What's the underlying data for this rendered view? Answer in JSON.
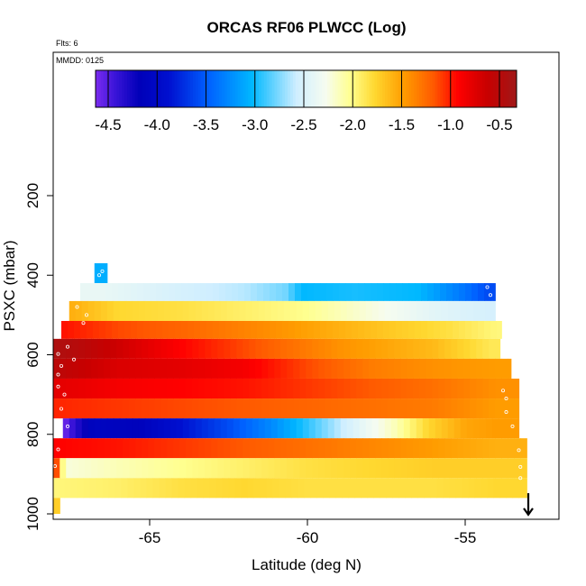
{
  "chart_data": {
    "type": "heatmap",
    "title": "ORCAS RF06 PLWCC (Log)",
    "note_flts": "Flts: 6",
    "note_mmdd": "MMDD: 0125",
    "xlabel": "Latitude (deg N)",
    "ylabel": "PSXC (mbar)",
    "xlim": [
      -68.3,
      -52.3
    ],
    "ylim_inverted": [
      1000,
      100
    ],
    "x_ticks": [
      -65,
      -60,
      -55
    ],
    "x_tick_labels": [
      "-65",
      "-60",
      "-55"
    ],
    "y_ticks": [
      200,
      400,
      600,
      800,
      1000
    ],
    "y_tick_labels": [
      "200",
      "400",
      "600",
      "800",
      "1000"
    ],
    "colorbar": {
      "range": [
        -4.65,
        -0.35
      ],
      "ticks": [
        -4.5,
        -4.0,
        -3.5,
        -3.0,
        -2.5,
        -2.0,
        -1.5,
        -1.0,
        -0.5
      ],
      "tick_labels": [
        "-4.5",
        "-4.0",
        "-3.5",
        "-3.0",
        "-2.5",
        "-2.0",
        "-1.5",
        "-1.0",
        "-0.5"
      ],
      "stops": [
        {
          "v": -4.65,
          "c": "#7b2cf0"
        },
        {
          "v": -4.45,
          "c": "#3a14d8"
        },
        {
          "v": -4.2,
          "c": "#0000b8"
        },
        {
          "v": -3.9,
          "c": "#0010d0"
        },
        {
          "v": -3.5,
          "c": "#0060ff"
        },
        {
          "v": -3.05,
          "c": "#00b8ff"
        },
        {
          "v": -2.6,
          "c": "#cfeeff"
        },
        {
          "v": -2.3,
          "c": "#f6fcf0"
        },
        {
          "v": -2.05,
          "c": "#ffff90"
        },
        {
          "v": -1.8,
          "c": "#ffd830"
        },
        {
          "v": -1.5,
          "c": "#ff9c00"
        },
        {
          "v": -1.2,
          "c": "#ff5a00"
        },
        {
          "v": -0.95,
          "c": "#ff0000"
        },
        {
          "v": -0.65,
          "c": "#c80000"
        },
        {
          "v": -0.35,
          "c": "#a01818"
        }
      ]
    },
    "layers": [
      {
        "p0": 370,
        "p1": 420,
        "x0": -66.75,
        "x1": -66.35,
        "cells": [
          [
            -66.55,
            -3.1
          ]
        ]
      },
      {
        "p0": 420,
        "p1": 465,
        "x0": -67.2,
        "x1": -54.05,
        "cells": [
          [
            -66.5,
            -2.4
          ],
          [
            -64.0,
            -2.55
          ],
          [
            -62.0,
            -2.65
          ],
          [
            -60.7,
            -2.8
          ],
          [
            -60.2,
            -3.05
          ],
          [
            -58.5,
            -3.0
          ],
          [
            -56.5,
            -3.05
          ],
          [
            -55.0,
            -3.4
          ],
          [
            -54.3,
            -3.6
          ]
        ]
      },
      {
        "p0": 465,
        "p1": 515,
        "x0": -67.55,
        "x1": -54.05,
        "cells": [
          [
            -67.4,
            -1.6
          ],
          [
            -66.0,
            -1.8
          ],
          [
            -64.0,
            -1.85
          ],
          [
            -62.0,
            -1.95
          ],
          [
            -60.0,
            -2.05
          ],
          [
            -58.0,
            -2.25
          ],
          [
            -56.0,
            -2.45
          ],
          [
            -54.3,
            -2.55
          ]
        ]
      },
      {
        "p0": 515,
        "p1": 560,
        "x0": -67.8,
        "x1": -53.85,
        "cells": [
          [
            -67.7,
            -1.0
          ],
          [
            -66.0,
            -1.15
          ],
          [
            -64.0,
            -1.25
          ],
          [
            -62.5,
            -1.35
          ],
          [
            -61.0,
            -1.45
          ],
          [
            -59.0,
            -1.6
          ],
          [
            -57.0,
            -1.75
          ],
          [
            -55.5,
            -1.85
          ],
          [
            -54.0,
            -2.0
          ]
        ]
      },
      {
        "p0": 560,
        "p1": 610,
        "x0": -68.05,
        "x1": -53.9,
        "cells": [
          [
            -68.0,
            -0.45
          ],
          [
            -67.0,
            -0.55
          ],
          [
            -65.5,
            -0.75
          ],
          [
            -64.0,
            -0.95
          ],
          [
            -62.0,
            -1.15
          ],
          [
            -60.5,
            -1.3
          ],
          [
            -59.0,
            -1.45
          ],
          [
            -57.5,
            -1.55
          ],
          [
            -56.0,
            -1.65
          ],
          [
            -54.2,
            -1.9
          ]
        ]
      },
      {
        "p0": 610,
        "p1": 660,
        "x0": -68.05,
        "x1": -53.55,
        "cells": [
          [
            -68.0,
            -0.55
          ],
          [
            -66.0,
            -0.75
          ],
          [
            -64.0,
            -0.8
          ],
          [
            -62.0,
            -0.9
          ],
          [
            -60.0,
            -1.15
          ],
          [
            -58.0,
            -1.35
          ],
          [
            -56.0,
            -1.45
          ],
          [
            -54.0,
            -1.5
          ]
        ]
      },
      {
        "p0": 660,
        "p1": 710,
        "x0": -68.05,
        "x1": -53.3,
        "cells": [
          [
            -68.0,
            -0.8
          ],
          [
            -66.0,
            -0.9
          ],
          [
            -64.0,
            -0.95
          ],
          [
            -62.0,
            -1.0
          ],
          [
            -60.0,
            -1.1
          ],
          [
            -58.0,
            -1.2
          ],
          [
            -56.0,
            -1.3
          ],
          [
            -54.0,
            -1.45
          ]
        ]
      },
      {
        "p0": 710,
        "p1": 760,
        "x0": -68.05,
        "x1": -53.3,
        "cells": [
          [
            -68.0,
            -1.05
          ],
          [
            -66.0,
            -1.1
          ],
          [
            -64.0,
            -1.15
          ],
          [
            -62.0,
            -1.2
          ],
          [
            -60.0,
            -1.25
          ],
          [
            -58.0,
            -1.3
          ],
          [
            -56.0,
            -1.35
          ],
          [
            -54.0,
            -1.5
          ]
        ]
      },
      {
        "p0": 760,
        "p1": 810,
        "x0": -67.75,
        "x1": -53.3,
        "cells": [
          [
            -67.7,
            -4.6
          ],
          [
            -67.3,
            -4.35
          ],
          [
            -66.8,
            -4.1
          ],
          [
            -65.3,
            -4.15
          ],
          [
            -64.0,
            -3.9
          ],
          [
            -62.5,
            -3.6
          ],
          [
            -61.2,
            -3.3
          ],
          [
            -60.5,
            -3.1
          ],
          [
            -59.5,
            -2.8
          ],
          [
            -58.2,
            -2.4
          ],
          [
            -57.2,
            -2.15
          ],
          [
            -56.2,
            -1.8
          ],
          [
            -55.0,
            -1.55
          ],
          [
            -54.0,
            -1.5
          ]
        ]
      },
      {
        "p0": 810,
        "p1": 860,
        "x0": -68.05,
        "x1": -53.05,
        "cells": [
          [
            -68.0,
            -0.95
          ],
          [
            -66.0,
            -1.0
          ],
          [
            -64.0,
            -1.1
          ],
          [
            -62.0,
            -1.2
          ],
          [
            -60.0,
            -1.3
          ],
          [
            -58.0,
            -1.4
          ],
          [
            -56.0,
            -1.5
          ],
          [
            -54.0,
            -1.6
          ]
        ]
      },
      {
        "p0": 860,
        "p1": 910,
        "x0": -68.05,
        "x1": -53.05,
        "cells": [
          [
            -68.0,
            -0.95
          ],
          [
            -67.7,
            -2.25
          ],
          [
            -66.0,
            -2.15
          ],
          [
            -64.0,
            -2.05
          ],
          [
            -62.0,
            -1.95
          ],
          [
            -60.0,
            -1.85
          ],
          [
            -58.0,
            -1.8
          ],
          [
            -56.0,
            -1.75
          ],
          [
            -54.0,
            -1.75
          ]
        ]
      },
      {
        "p0": 910,
        "p1": 960,
        "x0": -68.3,
        "x1": -53.05,
        "cells": [
          [
            -68.2,
            -2.0
          ],
          [
            -66.0,
            -1.95
          ],
          [
            -64.0,
            -1.85
          ],
          [
            -62.0,
            -1.8
          ],
          [
            -60.0,
            -1.85
          ],
          [
            -58.0,
            -1.85
          ],
          [
            -56.0,
            -1.85
          ],
          [
            -54.0,
            -1.8
          ]
        ]
      },
      {
        "p0": 960,
        "p1": 1000,
        "x0": -68.1,
        "x1": -67.85,
        "cells": [
          [
            -68.0,
            -1.75
          ]
        ]
      }
    ],
    "track_points": [
      [
        -66.5,
        390
      ],
      [
        -66.6,
        400
      ],
      [
        -67.0,
        500
      ],
      [
        -67.1,
        520
      ],
      [
        -67.3,
        480
      ],
      [
        -68.1,
        578
      ],
      [
        -67.6,
        580
      ],
      [
        -67.9,
        598
      ],
      [
        -67.4,
        612
      ],
      [
        -67.8,
        628
      ],
      [
        -67.9,
        650
      ],
      [
        -67.9,
        680
      ],
      [
        -67.7,
        700
      ],
      [
        -67.8,
        736
      ],
      [
        -67.6,
        780
      ],
      [
        -67.9,
        800
      ],
      [
        -67.9,
        838
      ],
      [
        -68.0,
        880
      ],
      [
        -54.3,
        430
      ],
      [
        -54.2,
        450
      ],
      [
        -53.8,
        690
      ],
      [
        -53.7,
        710
      ],
      [
        -53.7,
        744
      ],
      [
        -53.5,
        780
      ],
      [
        -53.3,
        840
      ],
      [
        -53.25,
        882
      ],
      [
        -53.25,
        910
      ],
      [
        -68.2,
        950
      ]
    ],
    "arrow": {
      "x": -53.0,
      "p_from": 948,
      "p_to": 1002
    }
  }
}
